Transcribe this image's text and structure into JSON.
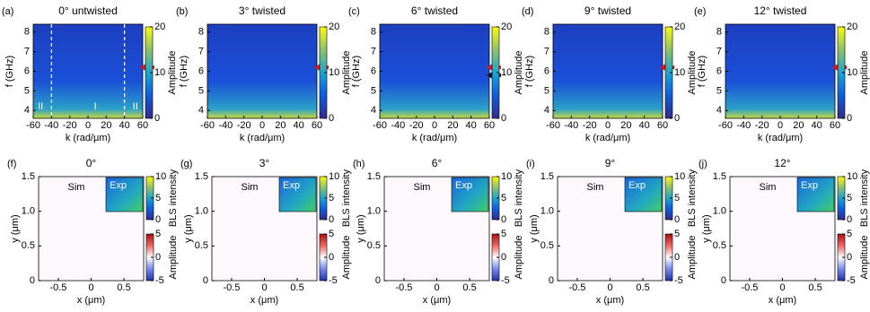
{
  "top_row": {
    "panels": [
      {
        "label": "(a)",
        "title": "0° untwisted",
        "arrows": [
          {
            "y": 6.2,
            "color": "#ee1111"
          }
        ],
        "dashed_x": [
          -40,
          40
        ],
        "regions": {
          "labels": [
            "II",
            "I",
            "II"
          ],
          "x": [
            -52,
            8,
            52
          ],
          "y": 4.2
        }
      },
      {
        "label": "(b)",
        "title": "3° twisted",
        "arrows": [
          {
            "y": 6.2,
            "color": "#ee1111"
          }
        ]
      },
      {
        "label": "(c)",
        "title": "6° twisted",
        "arrows": [
          {
            "y": 6.2,
            "color": "#ee1111"
          },
          {
            "y": 5.8,
            "color": "#111111"
          }
        ]
      },
      {
        "label": "(d)",
        "title": "9° twisted",
        "arrows": [
          {
            "y": 6.2,
            "color": "#ee1111"
          }
        ]
      },
      {
        "label": "(e)",
        "title": "12° twisted",
        "arrows": [
          {
            "y": 6.2,
            "color": "#ee1111"
          }
        ]
      }
    ],
    "xlabel": "k (rad/μm)",
    "ylabel": "f (GHz)",
    "xlim": [
      -60,
      60
    ],
    "xticks": [
      -60,
      -40,
      -20,
      0,
      20,
      40,
      60
    ],
    "ylim": [
      3.6,
      8.4
    ],
    "yticks": [
      4,
      5,
      6,
      7,
      8
    ],
    "colorbar": {
      "label": "Amplitude",
      "lim": [
        0,
        20
      ],
      "ticks": [
        0,
        10,
        20
      ]
    }
  },
  "bottom_row": {
    "panels": [
      {
        "label": "(f)",
        "title": "0°"
      },
      {
        "label": "(g)",
        "title": "3°"
      },
      {
        "label": "(h)",
        "title": "6°"
      },
      {
        "label": "(i)",
        "title": "9°"
      },
      {
        "label": "(j)",
        "title": "12°"
      }
    ],
    "sim_label": "Sim",
    "exp_label": "Exp",
    "xlabel": "x (μm)",
    "ylabel": "y (μm)",
    "xlim": [
      -0.8,
      0.8
    ],
    "xticks": [
      -0.5,
      0,
      0.5
    ],
    "ylim": [
      0,
      1.5
    ],
    "yticks": [
      0,
      0.5,
      {
        "value": 1,
        "label": "1.0"
      },
      1.5
    ],
    "bls_colorbar": {
      "label": "BLS intensity",
      "lim": [
        0,
        10
      ],
      "ticks": [
        0,
        5,
        10
      ]
    },
    "amp_colorbar": {
      "label": "Amplitude",
      "lim": [
        -5,
        5
      ],
      "ticks": [
        -5,
        0,
        5
      ]
    }
  }
}
